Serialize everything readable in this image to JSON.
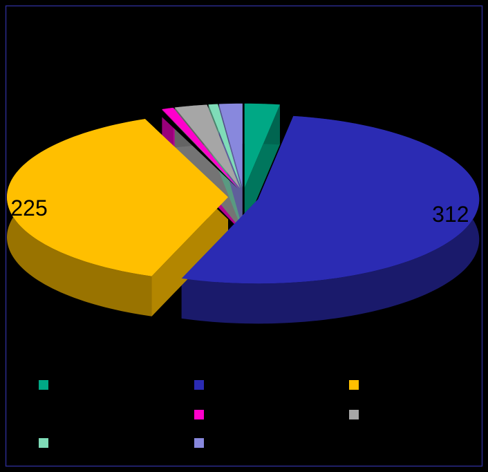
{
  "chart_data": {
    "type": "pie3d",
    "categories": [
      null,
      null,
      null,
      null,
      null,
      null,
      null,
      null
    ],
    "values": [
      15,
      312,
      225,
      3,
      5,
      14,
      4,
      10
    ],
    "colors": [
      "#00a885",
      "#2b2bb3",
      "#ffbf00",
      "#000000",
      "#ff00cc",
      "#a6a6a6",
      "#7fdcb8",
      "#8888dd"
    ],
    "legend": "bottom"
  }
}
